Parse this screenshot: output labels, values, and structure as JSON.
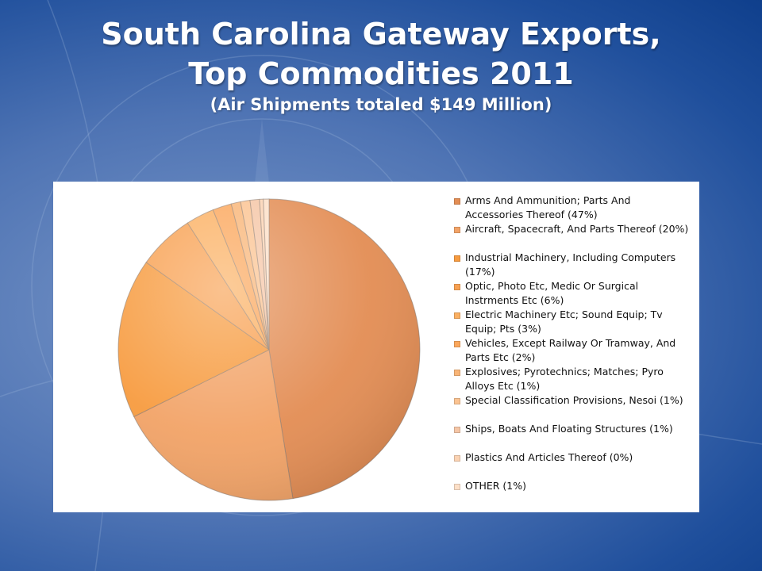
{
  "slide": {
    "title_line1": "South Carolina Gateway Exports,",
    "title_line2": "Top Commodities 2011",
    "subtitle": "(Air Shipments totaled $149 Million)"
  },
  "chart_data": {
    "type": "pie",
    "title": "",
    "legend_position": "right",
    "slices": [
      {
        "label": "Arms And Ammunition; Parts And Accessories Thereof (47%)",
        "value": 47,
        "color": "#e38d54"
      },
      {
        "label": "Aircraft, Spacecraft, And Parts Thereof (20%)",
        "value": 20,
        "color": "#f2a367"
      },
      {
        "label": "Industrial Machinery, Including Computers (17%)",
        "value": 17,
        "color": "#f79b3f"
      },
      {
        "label": "Optic, Photo Etc, Medic Or Surgical Instrments Etc (6%)",
        "value": 6,
        "color": "#f8a152"
      },
      {
        "label": "Electric Machinery Etc; Sound Equip; Tv Equip; Pts (3%)",
        "value": 3,
        "color": "#fbb062"
      },
      {
        "label": "Vehicles, Except Railway Or Tramway, And Parts Etc (2%)",
        "value": 2,
        "color": "#fba75c"
      },
      {
        "label": "Explosives; Pyrotechnics; Matches; Pyro Alloys Etc (1%)",
        "value": 1,
        "color": "#f9b577"
      },
      {
        "label": "Special Classification Provisions, Nesoi (1%)",
        "value": 1,
        "color": "#fbc391"
      },
      {
        "label": "Ships, Boats And Floating Structures (1%)",
        "value": 1,
        "color": "#f5c6a6"
      },
      {
        "label": "Plastics And Articles Thereof (0%)",
        "value": 0.4,
        "color": "#fbd3b3"
      },
      {
        "label": "OTHER (1%)",
        "value": 0.6,
        "color": "#fde0c8"
      }
    ]
  }
}
